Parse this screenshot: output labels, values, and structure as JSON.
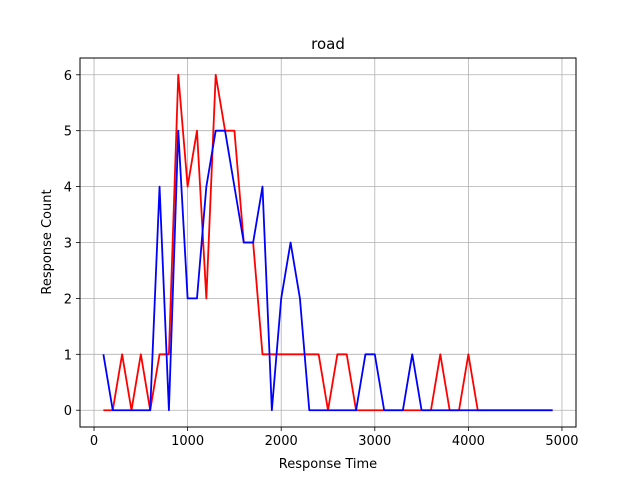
{
  "chart_data": {
    "type": "line",
    "title": "road",
    "xlabel": "Response Time",
    "ylabel": "Response Count",
    "xlim": [
      -150,
      5150
    ],
    "ylim": [
      -0.3,
      6.3
    ],
    "xticks": [
      0,
      1000,
      2000,
      3000,
      4000,
      5000
    ],
    "yticks": [
      0,
      1,
      2,
      3,
      4,
      5,
      6
    ],
    "grid": true,
    "x": [
      100,
      200,
      300,
      400,
      500,
      600,
      700,
      800,
      900,
      1000,
      1100,
      1200,
      1300,
      1400,
      1500,
      1600,
      1700,
      1800,
      1900,
      2000,
      2100,
      2200,
      2300,
      2400,
      2500,
      2600,
      2700,
      2800,
      2900,
      3000,
      3100,
      3200,
      3300,
      3400,
      3500,
      3600,
      3700,
      3800,
      3900,
      4000,
      4100,
      4200,
      4300,
      4400,
      4500,
      4600,
      4700,
      4800,
      4900
    ],
    "series": [
      {
        "color": "#ff0000",
        "values": [
          0,
          0,
          1,
          0,
          1,
          0,
          1,
          1,
          6,
          4,
          5,
          2,
          6,
          5,
          5,
          3,
          3,
          1,
          1,
          1,
          1,
          1,
          1,
          1,
          0,
          1,
          1,
          0,
          0,
          0,
          0,
          0,
          0,
          0,
          0,
          0,
          1,
          0,
          0,
          1,
          0,
          0,
          0,
          0,
          0,
          0,
          0,
          0,
          0
        ]
      },
      {
        "color": "#0000ff",
        "values": [
          1,
          0,
          0,
          0,
          0,
          0,
          4,
          0,
          5,
          2,
          2,
          4,
          5,
          5,
          4,
          3,
          3,
          4,
          0,
          2,
          3,
          2,
          0,
          0,
          0,
          0,
          0,
          0,
          1,
          1,
          0,
          0,
          0,
          1,
          0,
          0,
          0,
          0,
          0,
          0,
          0,
          0,
          0,
          0,
          0,
          0,
          0,
          0,
          0
        ]
      }
    ]
  }
}
